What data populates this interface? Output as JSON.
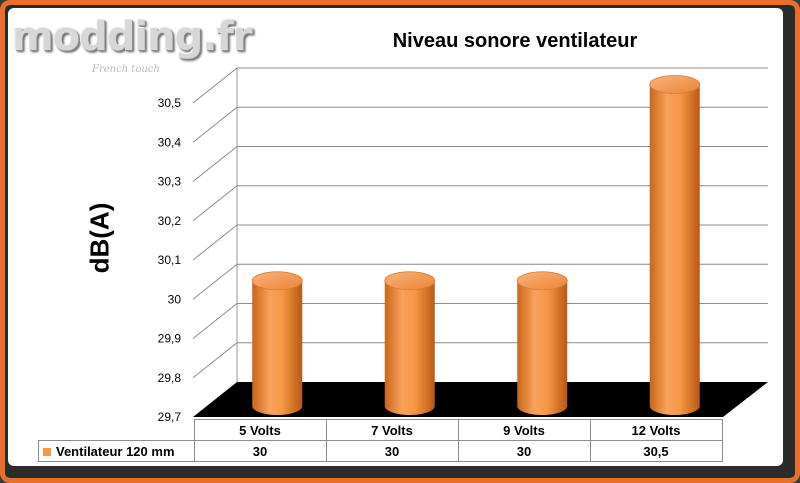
{
  "logo": {
    "text": "modding.fr",
    "subtext": "French touch"
  },
  "chart_data": {
    "type": "bar",
    "style": "3d-cylinder",
    "title": "Niveau sonore ventilateur",
    "xlabel": "",
    "ylabel": "dB(A)",
    "ylim": [
      29.7,
      30.5
    ],
    "yticks": [
      "29,7",
      "29,8",
      "29,9",
      "30",
      "30,1",
      "30,2",
      "30,3",
      "30,4",
      "30,5"
    ],
    "categories": [
      "5 Volts",
      "7 Volts",
      "9 Volts",
      "12 Volts"
    ],
    "series": [
      {
        "name": "Ventilateur 120 mm",
        "values": [
          30,
          30,
          30,
          30.5
        ],
        "labels": [
          "30",
          "30",
          "30",
          "30,5"
        ],
        "color": "#f79646"
      }
    ],
    "grid": true,
    "floor_color": "#000000",
    "data_table": true
  }
}
